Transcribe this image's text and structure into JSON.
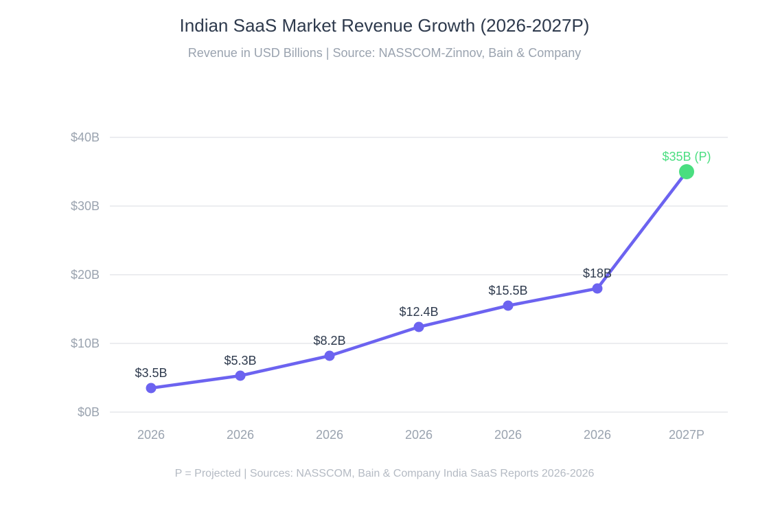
{
  "chart_data": {
    "type": "line",
    "title": "Indian SaaS Market Revenue Growth (2026-2027P)",
    "subtitle": "Revenue in USD Billions | Source: NASSCOM-Zinnov, Bain & Company",
    "footnote": "P = Projected | Sources: NASSCOM, Bain & Company India SaaS Reports 2026-2026",
    "categories": [
      "2026",
      "2026",
      "2026",
      "2026",
      "2026",
      "2026",
      "2027P"
    ],
    "values": [
      3.5,
      5.3,
      8.2,
      12.4,
      15.5,
      18,
      35
    ],
    "data_labels": [
      "$3.5B",
      "$5.3B",
      "$8.2B",
      "$12.4B",
      "$15.5B",
      "$18B",
      "$35B (P)"
    ],
    "projected_index": 6,
    "ylim": [
      0,
      40
    ],
    "y_ticks": [
      0,
      10,
      20,
      30,
      40
    ],
    "y_tick_labels": [
      "$0B",
      "$10B",
      "$20B",
      "$30B",
      "$40B"
    ],
    "xlabel": "",
    "ylabel": "",
    "grid": true,
    "legend": "none",
    "colors": {
      "line": "#6c63f0",
      "projected": "#4ade80",
      "grid": "#e5e7eb",
      "text": "#2e3a4d",
      "muted": "#9aa3af"
    }
  }
}
